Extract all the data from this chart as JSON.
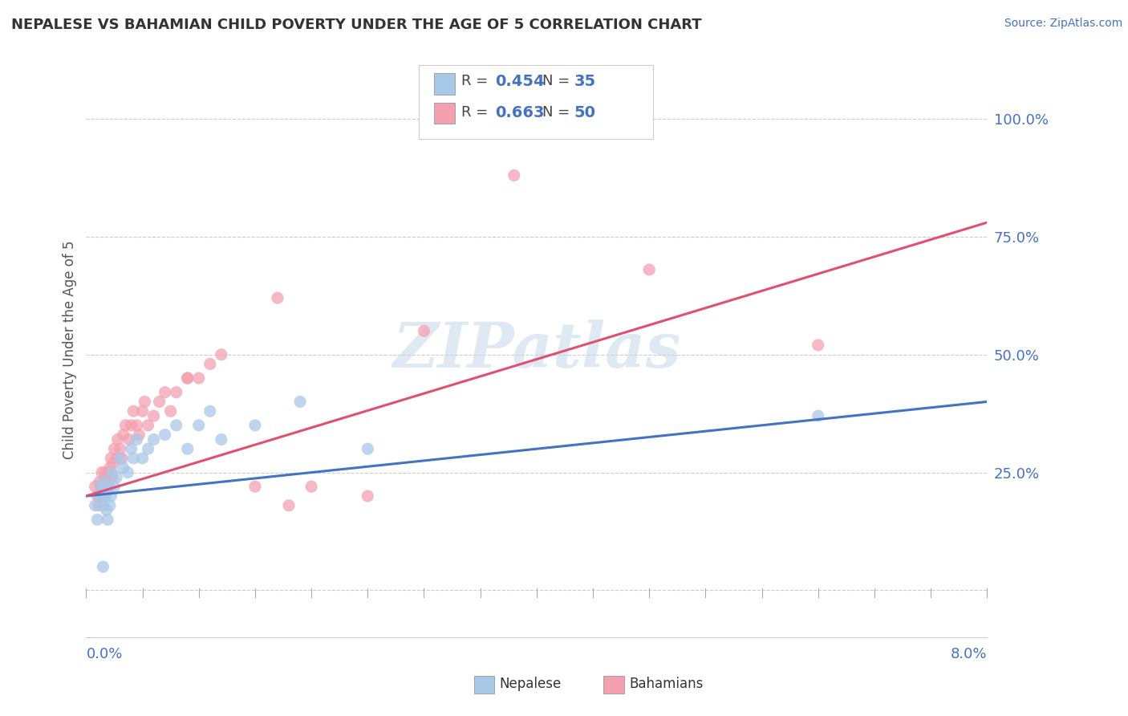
{
  "title": "NEPALESE VS BAHAMIAN CHILD POVERTY UNDER THE AGE OF 5 CORRELATION CHART",
  "source": "Source: ZipAtlas.com",
  "ylabel": "Child Poverty Under the Age of 5",
  "xlim": [
    0.0,
    8.0
  ],
  "ylim": [
    -10.0,
    112.0
  ],
  "yticks": [
    0,
    25,
    50,
    75,
    100
  ],
  "ytick_labels": [
    "",
    "25.0%",
    "50.0%",
    "75.0%",
    "100.0%"
  ],
  "nepalese_color": "#a8c8e8",
  "bahamian_color": "#f4a0b0",
  "nepalese_line_color": "#4472c4",
  "bahamian_line_color": "#e05070",
  "watermark": "ZIPatlas",
  "watermark_color": "#c5d8ea",
  "nep_line_x0": 0.0,
  "nep_line_y0": 20.0,
  "nep_line_x1": 8.0,
  "nep_line_y1": 40.0,
  "bah_line_x0": 0.0,
  "bah_line_y0": 20.0,
  "bah_line_x1": 8.0,
  "bah_line_y1": 78.0,
  "nepalese_x": [
    0.08,
    0.1,
    0.12,
    0.13,
    0.15,
    0.16,
    0.17,
    0.18,
    0.19,
    0.2,
    0.21,
    0.22,
    0.23,
    0.25,
    0.27,
    0.3,
    0.33,
    0.37,
    0.4,
    0.42,
    0.45,
    0.5,
    0.55,
    0.6,
    0.7,
    0.8,
    0.9,
    1.0,
    1.1,
    1.2,
    1.5,
    1.9,
    2.5,
    6.5,
    0.15
  ],
  "nepalese_y": [
    18,
    15,
    20,
    22,
    18,
    23,
    20,
    17,
    15,
    22,
    18,
    20,
    25,
    22,
    24,
    28,
    26,
    25,
    30,
    28,
    32,
    28,
    30,
    32,
    33,
    35,
    30,
    35,
    38,
    32,
    35,
    40,
    30,
    37,
    5
  ],
  "bahamian_x": [
    0.08,
    0.1,
    0.11,
    0.12,
    0.13,
    0.14,
    0.15,
    0.16,
    0.17,
    0.18,
    0.19,
    0.2,
    0.21,
    0.22,
    0.23,
    0.24,
    0.25,
    0.27,
    0.28,
    0.3,
    0.32,
    0.33,
    0.35,
    0.38,
    0.4,
    0.42,
    0.45,
    0.47,
    0.5,
    0.52,
    0.55,
    0.6,
    0.65,
    0.7,
    0.75,
    0.8,
    0.9,
    1.0,
    1.1,
    1.2,
    1.5,
    1.8,
    2.0,
    2.5,
    3.0,
    3.8,
    5.0,
    6.5,
    1.7,
    0.9
  ],
  "bahamian_y": [
    22,
    20,
    18,
    23,
    22,
    25,
    20,
    23,
    25,
    24,
    22,
    25,
    26,
    28,
    24,
    27,
    30,
    28,
    32,
    30,
    28,
    33,
    35,
    32,
    35,
    38,
    35,
    33,
    38,
    40,
    35,
    37,
    40,
    42,
    38,
    42,
    45,
    45,
    48,
    50,
    22,
    18,
    22,
    20,
    55,
    88,
    68,
    52,
    62,
    45
  ]
}
